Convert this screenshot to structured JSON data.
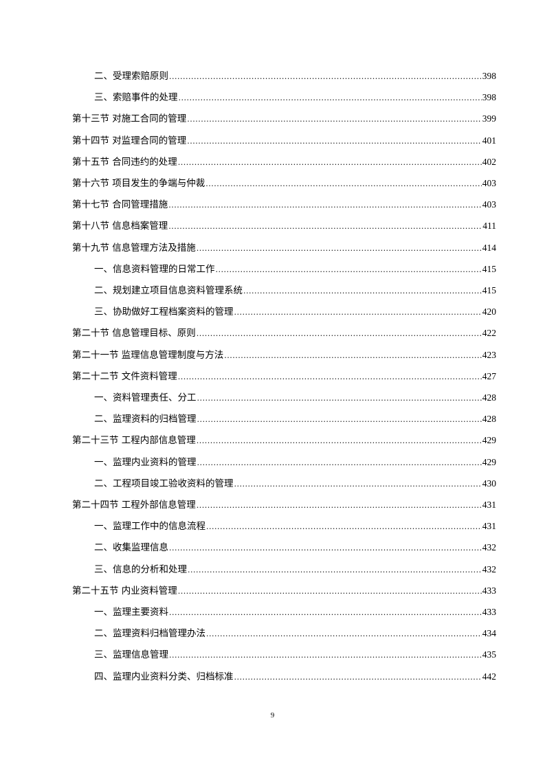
{
  "toc": {
    "entries": [
      {
        "level": 2,
        "title": "二、受理索赔原则",
        "page": "398"
      },
      {
        "level": 2,
        "title": "三、索赔事件的处理",
        "page": "398"
      },
      {
        "level": 1,
        "title": "第十三节  对施工合同的管理",
        "page": "399"
      },
      {
        "level": 1,
        "title": "第十四节  对监理合同的管理",
        "page": "401"
      },
      {
        "level": 1,
        "title": "第十五节  合同违约的处理",
        "page": "402"
      },
      {
        "level": 1,
        "title": "第十六节  项目发生的争端与仲裁",
        "page": "403"
      },
      {
        "level": 1,
        "title": "第十七节  合同管理措施",
        "page": "403"
      },
      {
        "level": 1,
        "title": "第十八节  信息档案管理",
        "page": "411"
      },
      {
        "level": 1,
        "title": "第十九节  信息管理方法及措施",
        "page": "414"
      },
      {
        "level": 2,
        "title": "一、信息资料管理的日常工作",
        "page": "415"
      },
      {
        "level": 2,
        "title": "二、规划建立项目信息资料管理系统",
        "page": "415"
      },
      {
        "level": 2,
        "title": "三、协助做好工程档案资料的管理",
        "page": "420"
      },
      {
        "level": 1,
        "title": "第二十节  信息管理目标、原则",
        "page": "422"
      },
      {
        "level": 1,
        "title": "第二十一节  监理信息管理制度与方法",
        "page": "423"
      },
      {
        "level": 1,
        "title": "第二十二节  文件资料管理",
        "page": "427"
      },
      {
        "level": 2,
        "title": "一、资料管理责任、分工",
        "page": "428"
      },
      {
        "level": 2,
        "title": "二、监理资料的归档管理",
        "page": "428"
      },
      {
        "level": 1,
        "title": "第二十三节  工程内部信息管理",
        "page": "429"
      },
      {
        "level": 2,
        "title": "一、监理内业资料的管理",
        "page": "429"
      },
      {
        "level": 2,
        "title": "二、工程项目竣工验收资料的管理",
        "page": "430"
      },
      {
        "level": 1,
        "title": "第二十四节  工程外部信息管理",
        "page": "431"
      },
      {
        "level": 2,
        "title": "一、监理工作中的信息流程",
        "page": "431"
      },
      {
        "level": 2,
        "title": "二、收集监理信息",
        "page": "432"
      },
      {
        "level": 2,
        "title": "三、信息的分析和处理",
        "page": "432"
      },
      {
        "level": 1,
        "title": "第二十五节  内业资料管理",
        "page": "433"
      },
      {
        "level": 2,
        "title": "一、监理主要资料",
        "page": "433"
      },
      {
        "level": 2,
        "title": "二、监理资料归档管理办法",
        "page": "434"
      },
      {
        "level": 2,
        "title": "三、监理信息管理",
        "page": "435"
      },
      {
        "level": 2,
        "title": "四、监理内业资料分类、归档标准",
        "page": "442"
      }
    ]
  },
  "footer": {
    "page_number": "9"
  }
}
